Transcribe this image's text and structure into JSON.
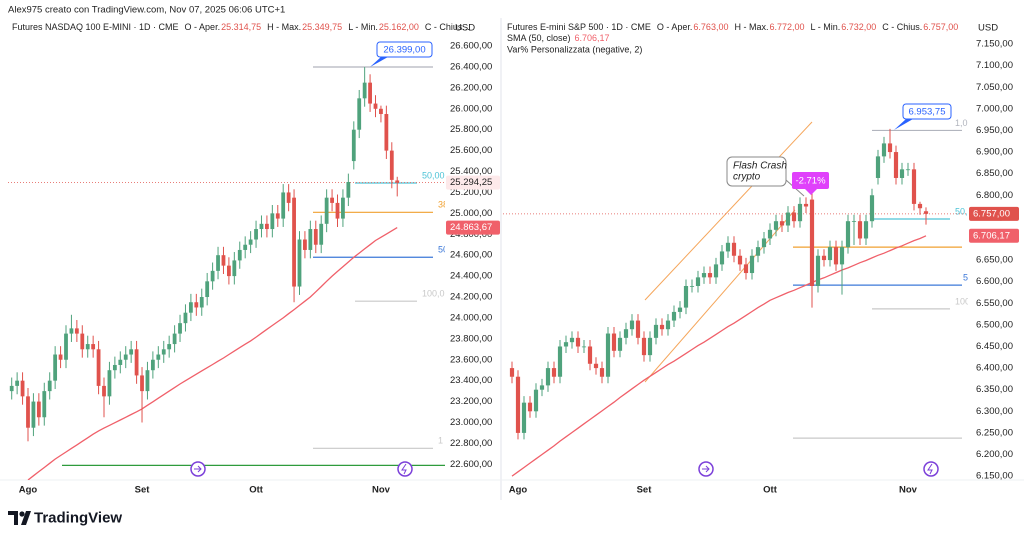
{
  "header": "Alex975 creato con TradingView.com, Nov 07, 2025 06:06 UTC+1",
  "brand": "TradingView",
  "chart_data": [
    {
      "type": "candlestick",
      "title": "Futures NASDAQ 100 E-MINI · 1D · CME",
      "ohlc_legend": [
        {
          "label": "O - Aper.",
          "value": "25.314,75"
        },
        {
          "label": "H - Max.",
          "value": "25.349,75"
        },
        {
          "label": "L - Min.",
          "value": "25.162,00"
        },
        {
          "label": "C - Chius..."
        }
      ],
      "currency": "USD",
      "up_color": "#4fa27c",
      "down_color": "#e0524c",
      "categories": [
        null,
        null,
        null,
        "Ago",
        null,
        null,
        null,
        null,
        null,
        null,
        null,
        null,
        null,
        null,
        null,
        null,
        null,
        null,
        null,
        null,
        null,
        null,
        null,
        null,
        "Set",
        null,
        null,
        null,
        null,
        null,
        null,
        null,
        null,
        null,
        null,
        null,
        null,
        null,
        null,
        null,
        null,
        null,
        null,
        null,
        null,
        "Ott",
        null,
        null,
        null,
        null,
        null,
        null,
        null,
        null,
        null,
        null,
        null,
        null,
        null,
        null,
        null,
        null,
        null,
        null,
        null,
        null,
        null,
        null,
        "Nov",
        null,
        null,
        null
      ],
      "open": [
        23300,
        23350,
        23400,
        23250,
        22950,
        23200,
        23050,
        23300,
        23400,
        23650,
        23600,
        23850,
        23900,
        23850,
        23700,
        23750,
        23700,
        23350,
        23250,
        23500,
        23550,
        23600,
        23650,
        23700,
        23450,
        23300,
        23500,
        23600,
        23650,
        23700,
        23750,
        23850,
        23950,
        24050,
        24150,
        24100,
        24200,
        24350,
        24450,
        24600,
        24500,
        24400,
        24550,
        24650,
        24700,
        24750,
        24850,
        24900,
        24850,
        25000,
        24950,
        25200,
        25150,
        24300,
        24750,
        24650,
        24850,
        24700,
        24900,
        25150,
        25100,
        24950,
        25150,
        25500,
        25800,
        26100,
        26250,
        26050,
        26000,
        25950,
        25600,
        25314.75
      ],
      "high": [
        23430,
        23480,
        23480,
        23330,
        23280,
        23280,
        23380,
        23480,
        23730,
        23730,
        23930,
        24030,
        23980,
        23930,
        23830,
        23830,
        23780,
        23430,
        23580,
        23630,
        23680,
        23730,
        23780,
        23780,
        23530,
        23580,
        23680,
        23730,
        23780,
        23830,
        23930,
        24030,
        24130,
        24230,
        24230,
        24280,
        24430,
        24530,
        24680,
        24680,
        24580,
        24630,
        24730,
        24780,
        24830,
        24930,
        24980,
        24980,
        25080,
        25080,
        25280,
        25280,
        25230,
        24830,
        24830,
        24930,
        24930,
        24980,
        25230,
        25230,
        25180,
        25230,
        25380,
        25880,
        26180,
        26399,
        26330,
        26130,
        26030,
        26030,
        25680,
        25349.75
      ],
      "low": [
        23220,
        23270,
        23170,
        22820,
        22870,
        22970,
        22970,
        23220,
        23320,
        23520,
        23520,
        23770,
        23770,
        23620,
        23620,
        23620,
        23270,
        23050,
        23170,
        23420,
        23470,
        23520,
        23570,
        23370,
        23000,
        23220,
        23420,
        23520,
        23570,
        23620,
        23670,
        23770,
        23870,
        23970,
        24020,
        24020,
        24120,
        24270,
        24370,
        24420,
        24320,
        24320,
        24470,
        24570,
        24620,
        24670,
        24770,
        24770,
        24770,
        24870,
        24870,
        25020,
        24150,
        24220,
        24570,
        24570,
        24620,
        24620,
        24820,
        25020,
        24870,
        24870,
        25070,
        25420,
        25720,
        26020,
        25970,
        25920,
        25870,
        25520,
        25240,
        25162
      ],
      "close": [
        23350,
        23400,
        23250,
        22950,
        23200,
        23050,
        23300,
        23400,
        23650,
        23600,
        23850,
        23900,
        23850,
        23700,
        23750,
        23700,
        23350,
        23250,
        23500,
        23550,
        23600,
        23650,
        23700,
        23450,
        23300,
        23500,
        23600,
        23650,
        23700,
        23750,
        23850,
        23950,
        24050,
        24150,
        24100,
        24200,
        24350,
        24450,
        24600,
        24500,
        24400,
        24550,
        24650,
        24700,
        24750,
        24850,
        24900,
        24850,
        25000,
        24950,
        25200,
        25100,
        24300,
        24750,
        24650,
        24850,
        24700,
        24900,
        25150,
        25100,
        24950,
        25150,
        25300,
        25800,
        26100,
        26250,
        26050,
        26000,
        25950,
        25600,
        25320,
        25294.25
      ],
      "last_close_label": "25.294,25",
      "high_callout": "26.399,00",
      "sma": {
        "color": "#f0606a",
        "last_label": "24.863,67",
        "values": [
          null,
          null,
          null,
          22450,
          22490,
          22530,
          22570,
          22610,
          22650,
          22684,
          22718,
          22752,
          22786,
          22820,
          22854,
          22888,
          22920,
          22946,
          22972,
          22998,
          23024,
          23050,
          23076,
          23102,
          23130,
          23164,
          23198,
          23232,
          23266,
          23300,
          23334,
          23368,
          23400,
          23431,
          23462,
          23493,
          23524,
          23555,
          23586,
          23617,
          23650,
          23683,
          23716,
          23749,
          23780,
          23817,
          23854,
          23891,
          23928,
          23965,
          24000,
          24040,
          24080,
          24120,
          24160,
          24200,
          24250,
          24300,
          24350,
          24400,
          24445,
          24490,
          24535,
          24580,
          24620,
          24660,
          24700,
          24740,
          24771,
          24802,
          24833,
          24863.67
        ]
      },
      "levels": [
        {
          "value": 26400,
          "color": "#b2b5be"
        },
        {
          "value": 25290,
          "color": "#4dc3d6",
          "label": "50,00"
        },
        {
          "value": 25010,
          "color": "#f0a030",
          "label": "38"
        },
        {
          "value": 24580,
          "color": "#3c78d8",
          "label": "50"
        },
        {
          "value": 24160,
          "color": "#c8c8c8",
          "label": "100,0"
        },
        {
          "value": 22753,
          "color": "#c8c8c8",
          "label": "1"
        },
        {
          "value": 22590,
          "color": "#2e9b3c"
        }
      ],
      "ylim": [
        22450,
        26830
      ],
      "yticks": [
        {
          "value": 22600,
          "label": "22.600,00"
        },
        {
          "value": 22800,
          "label": "22.800,00"
        },
        {
          "value": 23000,
          "label": "23.000,00"
        },
        {
          "value": 23200,
          "label": "23.200,00"
        },
        {
          "value": 23400,
          "label": "23.400,00"
        },
        {
          "value": 23600,
          "label": "23.600,00"
        },
        {
          "value": 23800,
          "label": "23.800,00"
        },
        {
          "value": 24000,
          "label": "24.000,00"
        },
        {
          "value": 24200,
          "label": "24.200,00"
        },
        {
          "value": 24400,
          "label": "24.400,00"
        },
        {
          "value": 24600,
          "label": "24.600,00"
        },
        {
          "value": 24800,
          "label": "24.800,00"
        },
        {
          "value": 25000,
          "label": "25.000,00"
        },
        {
          "value": 25200,
          "label": "25.200,00"
        },
        {
          "value": 25400,
          "label": "25.400,00"
        },
        {
          "value": 25600,
          "label": "25.600,00"
        },
        {
          "value": 25800,
          "label": "25.800,00"
        },
        {
          "value": 26000,
          "label": "26.000,00"
        },
        {
          "value": 26200,
          "label": "26.200,00"
        },
        {
          "value": 26400,
          "label": "26.400,00"
        },
        {
          "value": 26600,
          "label": "26.600,00"
        }
      ]
    },
    {
      "type": "candlestick",
      "title": "Futures E-mini S&P 500 · 1D · CME",
      "ohlc_legend": [
        {
          "label": "O - Aper.",
          "value": "6.763,00"
        },
        {
          "label": "H - Max.",
          "value": "6.772,00"
        },
        {
          "label": "L - Min.",
          "value": "6.732,00"
        },
        {
          "label": "C - Chius.",
          "value": "6.757,00"
        }
      ],
      "indicator": "Var% Personalizzata (negative, 2)",
      "currency": "USD",
      "up_color": "#4fa27c",
      "down_color": "#e0524c",
      "categories": [
        null,
        "Ago",
        null,
        null,
        null,
        null,
        null,
        null,
        null,
        null,
        null,
        null,
        null,
        null,
        null,
        null,
        null,
        null,
        null,
        null,
        null,
        null,
        "Set",
        null,
        null,
        null,
        null,
        null,
        null,
        null,
        null,
        null,
        null,
        null,
        null,
        null,
        null,
        null,
        null,
        null,
        null,
        null,
        null,
        "Ott",
        null,
        null,
        null,
        null,
        null,
        null,
        null,
        null,
        null,
        null,
        null,
        null,
        null,
        null,
        null,
        null,
        null,
        null,
        null,
        null,
        null,
        null,
        "Nov",
        null,
        null,
        null
      ],
      "open": [
        6400,
        6380,
        6250,
        6320,
        6300,
        6350,
        6360,
        6400,
        6380,
        6450,
        6460,
        6470,
        6450,
        6450,
        6410,
        6400,
        6380,
        6480,
        6440,
        6470,
        6490,
        6510,
        6470,
        6430,
        6470,
        6500,
        6490,
        6510,
        6530,
        6540,
        6590,
        6590,
        6610,
        6620,
        6610,
        6640,
        6670,
        6690,
        6660,
        6640,
        6620,
        6660,
        6680,
        6700,
        6720,
        6740,
        6730,
        6760,
        6740,
        6780,
        6790,
        6590,
        6660,
        6650,
        6680,
        6640,
        6680,
        6740,
        6740,
        6700,
        6740,
        6840,
        6890,
        6920,
        6900,
        6840,
        6860,
        6860,
        6780,
        6763
      ],
      "high": [
        6415,
        6395,
        6335,
        6335,
        6365,
        6375,
        6415,
        6415,
        6465,
        6475,
        6485,
        6485,
        6465,
        6465,
        6425,
        6415,
        6495,
        6495,
        6485,
        6505,
        6525,
        6525,
        6485,
        6485,
        6515,
        6515,
        6525,
        6545,
        6555,
        6605,
        6605,
        6625,
        6635,
        6635,
        6655,
        6685,
        6705,
        6705,
        6675,
        6655,
        6675,
        6695,
        6715,
        6735,
        6755,
        6755,
        6775,
        6775,
        6795,
        6795,
        6805,
        6675,
        6675,
        6695,
        6695,
        6695,
        6755,
        6755,
        6755,
        6755,
        6815,
        6905,
        6935,
        6953.75,
        6915,
        6875,
        6875,
        6875,
        6785,
        6772
      ],
      "low": [
        6365,
        6235,
        6235,
        6285,
        6285,
        6335,
        6345,
        6365,
        6365,
        6435,
        6445,
        6435,
        6435,
        6395,
        6385,
        6365,
        6365,
        6425,
        6425,
        6455,
        6475,
        6455,
        6415,
        6415,
        6455,
        6475,
        6475,
        6495,
        6515,
        6525,
        6575,
        6575,
        6595,
        6595,
        6595,
        6625,
        6655,
        6645,
        6625,
        6605,
        6605,
        6645,
        6665,
        6685,
        6705,
        6715,
        6715,
        6725,
        6725,
        6759,
        6540,
        6575,
        6635,
        6635,
        6625,
        6570,
        6665,
        6685,
        6685,
        6685,
        6725,
        6825,
        6875,
        6885,
        6825,
        6825,
        6845,
        6765,
        6755,
        6732
      ],
      "close": [
        6380,
        6250,
        6320,
        6300,
        6350,
        6360,
        6400,
        6380,
        6450,
        6460,
        6470,
        6450,
        6450,
        6410,
        6400,
        6380,
        6480,
        6440,
        6470,
        6490,
        6510,
        6470,
        6430,
        6470,
        6500,
        6490,
        6510,
        6530,
        6540,
        6590,
        6590,
        6610,
        6620,
        6610,
        6640,
        6670,
        6690,
        6660,
        6640,
        6620,
        6660,
        6680,
        6700,
        6720,
        6740,
        6730,
        6760,
        6740,
        6780,
        6774,
        6590,
        6660,
        6650,
        6680,
        6640,
        6680,
        6740,
        6740,
        6700,
        6740,
        6800,
        6890,
        6920,
        6900,
        6840,
        6860,
        6860,
        6780,
        6770,
        6757
      ],
      "last_close_label": "6.757,00",
      "high_callout": "6.953,75",
      "change_label": "-2.71%",
      "note": [
        "Flash Crash",
        "crypto"
      ],
      "sma": {
        "name": "SMA (50, close)",
        "color": "#f0606a",
        "last_label": "6.706,17",
        "values": [
          6150,
          6160,
          6170,
          6180,
          6190,
          6200,
          6210,
          6220,
          6231,
          6241,
          6251,
          6261,
          6271,
          6281,
          6291,
          6301,
          6311,
          6321,
          6332,
          6342,
          6352,
          6362,
          6372,
          6381,
          6390,
          6399,
          6408,
          6416,
          6425,
          6434,
          6443,
          6452,
          6460,
          6469,
          6478,
          6487,
          6496,
          6504,
          6513,
          6522,
          6531,
          6540,
          6548,
          6557,
          6563,
          6569,
          6575,
          6580,
          6586,
          6592,
          6598,
          6604,
          6609,
          6615,
          6621,
          6627,
          6632,
          6638,
          6644,
          6649,
          6655,
          6661,
          6666,
          6672,
          6678,
          6683,
          6689,
          6695,
          6700,
          6706.17
        ]
      },
      "levels": [
        {
          "value": 6950,
          "color": "#b2b5be",
          "label": "1,0"
        },
        {
          "value": 6745,
          "color": "#4dc3d6",
          "label": "50,"
        },
        {
          "value": 6680,
          "color": "#f0a030"
        },
        {
          "value": 6592,
          "color": "#3c78d8",
          "label": "5"
        },
        {
          "value": 6537,
          "color": "#c8c8c8",
          "label": "100"
        },
        {
          "value": 6238,
          "color": "#c8c8c8"
        }
      ],
      "ylim": [
        6141,
        7201
      ],
      "yticks": [
        {
          "value": 6150,
          "label": "6.150,00"
        },
        {
          "value": 6200,
          "label": "6.200,00"
        },
        {
          "value": 6250,
          "label": "6.250,00"
        },
        {
          "value": 6300,
          "label": "6.300,00"
        },
        {
          "value": 6350,
          "label": "6.350,00"
        },
        {
          "value": 6400,
          "label": "6.400,00"
        },
        {
          "value": 6450,
          "label": "6.450,00"
        },
        {
          "value": 6500,
          "label": "6.500,00"
        },
        {
          "value": 6550,
          "label": "6.550,00"
        },
        {
          "value": 6600,
          "label": "6.600,00"
        },
        {
          "value": 6650,
          "label": "6.650,00"
        },
        {
          "value": 6700,
          "label": "6.700,00"
        },
        {
          "value": 6750,
          "label": "6.750,00"
        },
        {
          "value": 6800,
          "label": "6.800,00"
        },
        {
          "value": 6850,
          "label": "6.850,00"
        },
        {
          "value": 6900,
          "label": "6.900,00"
        },
        {
          "value": 6950,
          "label": "6.950,00"
        },
        {
          "value": 7000,
          "label": "7.000,00"
        },
        {
          "value": 7050,
          "label": "7.050,00"
        },
        {
          "value": 7100,
          "label": "7.100,00"
        },
        {
          "value": 7150,
          "label": "7.150,00"
        }
      ]
    }
  ]
}
